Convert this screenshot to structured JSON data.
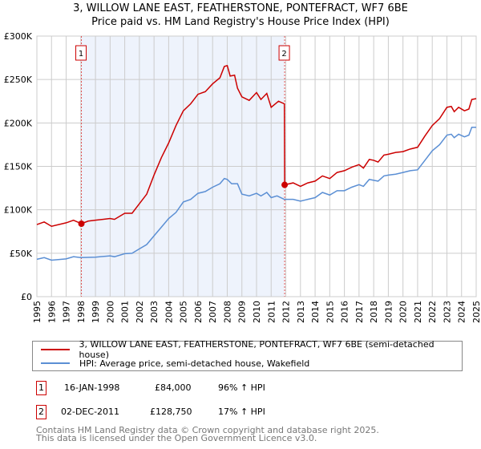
{
  "chart_data": {
    "type": "line",
    "title": "3, WILLOW LANE EAST, FEATHERSTONE, PONTEFRACT, WF7 6BE",
    "subtitle": "Price paid vs. HM Land Registry's House Price Index (HPI)",
    "xlim": [
      1995,
      2025
    ],
    "ylim": [
      0,
      300000
    ],
    "xticks": [
      "1995",
      "1996",
      "1997",
      "1998",
      "1999",
      "2000",
      "2001",
      "2002",
      "2003",
      "2004",
      "2005",
      "2006",
      "2007",
      "2008",
      "2009",
      "2010",
      "2011",
      "2012",
      "2013",
      "2014",
      "2015",
      "2016",
      "2017",
      "2018",
      "2019",
      "2020",
      "2021",
      "2022",
      "2023",
      "2024",
      "2025"
    ],
    "yticks": [
      {
        "v": 0,
        "label": "£0"
      },
      {
        "v": 50000,
        "label": "£50K"
      },
      {
        "v": 100000,
        "label": "£100K"
      },
      {
        "v": 150000,
        "label": "£150K"
      },
      {
        "v": 200000,
        "label": "£200K"
      },
      {
        "v": 250000,
        "label": "£250K"
      },
      {
        "v": 300000,
        "label": "£300K"
      }
    ],
    "grid": true,
    "shaded_range": [
      1998.04,
      2011.92
    ],
    "series": [
      {
        "name": "3, WILLOW LANE EAST, FEATHERSTONE, PONTEFRACT, WF7 6BE (semi-detached house)",
        "color": "#cc0000",
        "x": [
          1995,
          1995.5,
          1996,
          1997,
          1997.5,
          1998.04,
          1998.5,
          1999,
          2000,
          2000.3,
          2001,
          2001.5,
          2002,
          2002.5,
          2003,
          2003.5,
          2004,
          2004.5,
          2005,
          2005.5,
          2006,
          2006.5,
          2007,
          2007.5,
          2007.8,
          2008,
          2008.2,
          2008.5,
          2008.7,
          2009,
          2009.5,
          2010,
          2010.3,
          2010.7,
          2011,
          2011.5,
          2011.9,
          2011.92,
          2012.5,
          2013,
          2013.5,
          2014,
          2014.5,
          2015,
          2015.5,
          2016,
          2016.5,
          2017,
          2017.3,
          2017.7,
          2018,
          2018.3,
          2018.7,
          2019,
          2019.5,
          2020,
          2020.5,
          2021,
          2021.5,
          2022,
          2022.5,
          2023,
          2023.3,
          2023.5,
          2023.8,
          2024.2,
          2024.5,
          2024.7,
          2025
        ],
        "y": [
          83,
          86,
          81,
          85,
          88,
          84,
          87,
          88,
          90,
          89,
          96,
          96,
          107,
          118,
          140,
          160,
          177,
          197,
          214,
          222,
          233,
          236,
          245,
          252,
          265,
          266,
          254,
          255,
          240,
          230,
          226,
          235,
          227,
          234,
          218,
          225,
          222,
          128.75,
          131,
          127,
          131,
          133,
          139,
          136,
          143,
          145,
          149,
          152,
          148,
          158,
          157,
          155,
          163,
          164,
          166,
          167,
          170,
          172,
          185,
          197,
          205,
          218,
          219,
          213,
          218,
          214,
          216,
          227,
          228
        ]
      },
      {
        "name": "HPI: Average price, semi-detached house, Wakefield",
        "color": "#5b8fd4",
        "x": [
          1995,
          1995.5,
          1996,
          1997,
          1997.5,
          1998,
          1999,
          2000,
          2000.3,
          2001,
          2001.5,
          2002,
          2002.5,
          2003,
          2003.5,
          2004,
          2004.5,
          2005,
          2005.5,
          2006,
          2006.5,
          2007,
          2007.5,
          2007.8,
          2008,
          2008.3,
          2008.7,
          2009,
          2009.5,
          2010,
          2010.3,
          2010.7,
          2011,
          2011.4,
          2011.9,
          2012.5,
          2013,
          2013.5,
          2014,
          2014.5,
          2015,
          2015.5,
          2016,
          2016.5,
          2017,
          2017.3,
          2017.7,
          2018,
          2018.3,
          2018.7,
          2019,
          2019.5,
          2020,
          2020.5,
          2021,
          2021.5,
          2022,
          2022.5,
          2023,
          2023.3,
          2023.5,
          2023.8,
          2024.2,
          2024.5,
          2024.7,
          2025
        ],
        "y": [
          43,
          45,
          42,
          43.5,
          46,
          45,
          45.5,
          47,
          46,
          49.5,
          50,
          55,
          60,
          70,
          80,
          90,
          97,
          109,
          112,
          119,
          121,
          126,
          130,
          136,
          135,
          130,
          130,
          118,
          116,
          119,
          116,
          120,
          114,
          116,
          112,
          112,
          110,
          112,
          114,
          120,
          117,
          122,
          122,
          126,
          129,
          127,
          135,
          134,
          133,
          139,
          140,
          141,
          143,
          145,
          146,
          157,
          168,
          175,
          186,
          187,
          183,
          187,
          184,
          186,
          195,
          195
        ]
      }
    ],
    "y_units": "thousands GBP",
    "markers": [
      {
        "label": "1",
        "x": 1998.04,
        "y": 84
      },
      {
        "label": "2",
        "x": 2011.92,
        "y": 128.75
      }
    ]
  },
  "transactions": [
    {
      "num": "1",
      "date": "16-JAN-1998",
      "price": "£84,000",
      "hpi": "96% ↑ HPI"
    },
    {
      "num": "2",
      "date": "02-DEC-2011",
      "price": "£128,750",
      "hpi": "17% ↑ HPI"
    }
  ],
  "footer": [
    "Contains HM Land Registry data © Crown copyright and database right 2025.",
    "This data is licensed under the Open Government Licence v3.0."
  ]
}
